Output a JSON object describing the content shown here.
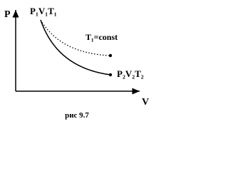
{
  "axes": {
    "y_label": "P",
    "x_label": "V"
  },
  "points": [
    {
      "label": "P₁V₁T₁"
    },
    {
      "label": "P₂V₂T₂"
    }
  ],
  "annotation": "T₁=const",
  "caption": "рис 9.7"
}
